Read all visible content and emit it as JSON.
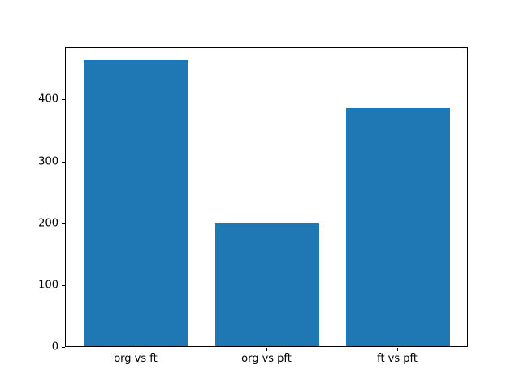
{
  "figure": {
    "background": "#ffffff",
    "title": ""
  },
  "chart_data": {
    "type": "bar",
    "title": "",
    "xlabel": "",
    "ylabel": "",
    "categories": [
      "org vs ft",
      "org vs pft",
      "ft vs pft"
    ],
    "values": [
      462,
      198,
      385
    ],
    "yticks": [
      0,
      100,
      200,
      300,
      400
    ],
    "ylim": [
      0,
      485
    ],
    "xlim": [
      -0.54,
      2.54
    ],
    "bar_width": 0.8,
    "bar_color": "#1f77b4",
    "axis_color": "#000000",
    "text_color": "#000000",
    "grid": false,
    "legend": null
  }
}
